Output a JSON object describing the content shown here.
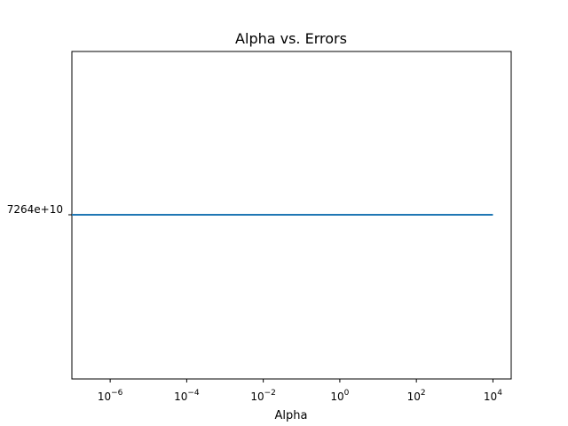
{
  "chart_data": {
    "type": "line",
    "title": "Alpha vs. Errors",
    "xlabel": "Alpha",
    "ylabel": "",
    "x_scale": "log",
    "xlim": [
      1e-07,
      30000
    ],
    "x_ticks": [
      {
        "base": "10",
        "exp": "−6",
        "value": 1e-06
      },
      {
        "base": "10",
        "exp": "−4",
        "value": 0.0001
      },
      {
        "base": "10",
        "exp": "−2",
        "value": 0.01
      },
      {
        "base": "10",
        "exp": "0",
        "value": 1
      },
      {
        "base": "10",
        "exp": "2",
        "value": 100
      },
      {
        "base": "10",
        "exp": "4",
        "value": 10000
      }
    ],
    "y_tick_label": "7264e+10",
    "grid": false,
    "series": [
      {
        "color": "#1f77b4",
        "x": [
          1e-07,
          1e-06,
          1e-05,
          0.0001,
          0.001,
          0.01,
          0.1,
          1,
          10,
          100,
          1000,
          10000
        ],
        "y": [
          1,
          1,
          1,
          1,
          1,
          1,
          1,
          1,
          1,
          1,
          1,
          1
        ]
      }
    ]
  }
}
